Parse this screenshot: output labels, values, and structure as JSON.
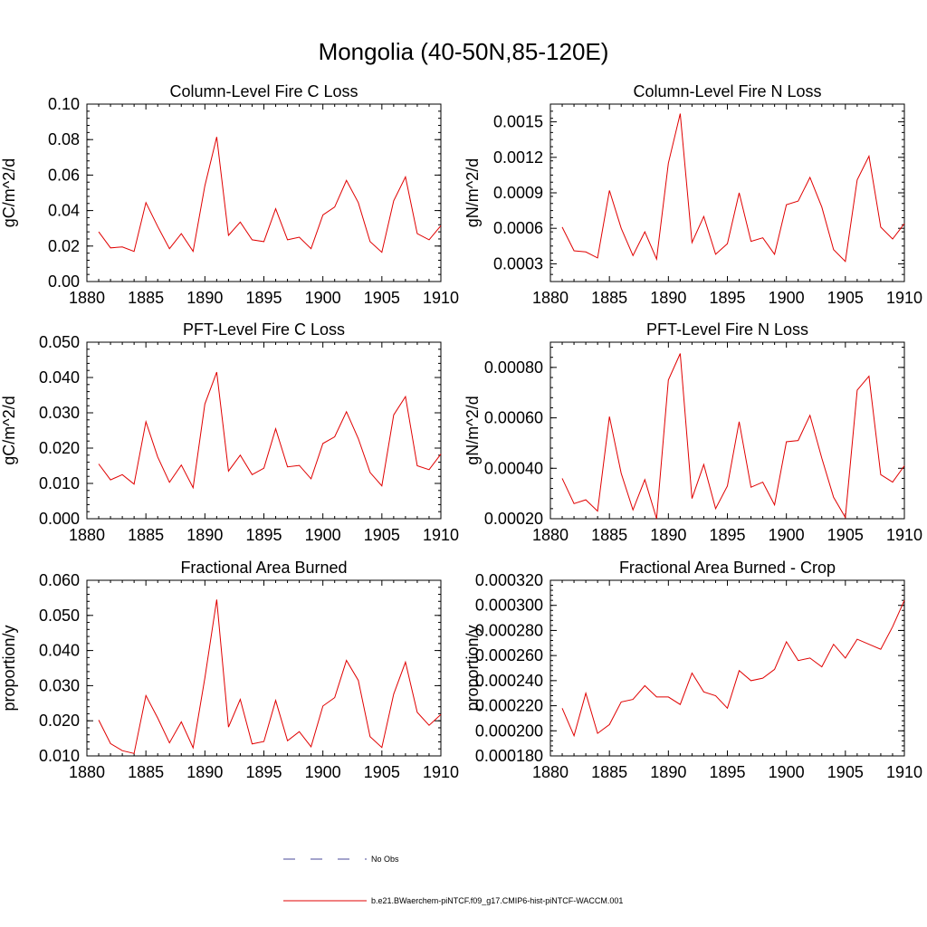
{
  "title": "Mongolia (40-50N,85-120E)",
  "legend": {
    "no_obs_label": "No Obs",
    "model_label": "b.e21.BWaerchem-piNTCF.f09_g17.CMIP6-hist-piNTCF-WACCM.001",
    "no_obs_color": "#4a4a9a",
    "model_color": "#e00000"
  },
  "chart_data": [
    {
      "type": "line",
      "title": "Column-Level Fire C Loss",
      "ylabel": "gC/m^2/d",
      "xlim": [
        1880,
        1910
      ],
      "ylim": [
        0,
        0.1
      ],
      "xticks": [
        "1880",
        "1885",
        "1890",
        "1895",
        "1900",
        "1905",
        "1910"
      ],
      "yticks": [
        "0.00",
        "0.02",
        "0.04",
        "0.06",
        "0.08",
        "0.10"
      ],
      "x": [
        1881,
        1882,
        1883,
        1884,
        1885,
        1886,
        1887,
        1888,
        1889,
        1890,
        1891,
        1892,
        1893,
        1894,
        1895,
        1896,
        1897,
        1898,
        1899,
        1900,
        1901,
        1902,
        1903,
        1904,
        1905,
        1906,
        1907,
        1908,
        1909,
        1910
      ],
      "series": [
        {
          "color": "#e00000",
          "values": [
            0.028,
            0.019,
            0.0195,
            0.017,
            0.0445,
            0.031,
            0.0185,
            0.027,
            0.017,
            0.054,
            0.0815,
            0.026,
            0.0335,
            0.0235,
            0.0225,
            0.041,
            0.0235,
            0.025,
            0.0185,
            0.0375,
            0.042,
            0.057,
            0.0445,
            0.0225,
            0.0165,
            0.0455,
            0.059,
            0.027,
            0.0235,
            0.0315
          ]
        }
      ]
    },
    {
      "type": "line",
      "title": "Column-Level Fire N Loss",
      "ylabel": "gN/m^2/d",
      "xlim": [
        1880,
        1910
      ],
      "ylim": [
        0.00015,
        0.00165
      ],
      "xticks": [
        "1880",
        "1885",
        "1890",
        "1895",
        "1900",
        "1905",
        "1910"
      ],
      "yticks": [
        "0.0003",
        "0.0006",
        "0.0009",
        "0.0012",
        "0.0015"
      ],
      "x": [
        1881,
        1882,
        1883,
        1884,
        1885,
        1886,
        1887,
        1888,
        1889,
        1890,
        1891,
        1892,
        1893,
        1894,
        1895,
        1896,
        1897,
        1898,
        1899,
        1900,
        1901,
        1902,
        1903,
        1904,
        1905,
        1906,
        1907,
        1908,
        1909,
        1910
      ],
      "series": [
        {
          "color": "#e00000",
          "values": [
            0.00061,
            0.00041,
            0.0004,
            0.00035,
            0.00092,
            0.0006,
            0.00037,
            0.00057,
            0.00034,
            0.00115,
            0.00157,
            0.00048,
            0.0007,
            0.00038,
            0.00047,
            0.0009,
            0.00049,
            0.00052,
            0.00038,
            0.0008,
            0.00083,
            0.00103,
            0.00078,
            0.00042,
            0.00032,
            0.00101,
            0.00121,
            0.00061,
            0.00051,
            0.00064
          ]
        }
      ]
    },
    {
      "type": "line",
      "title": "PFT-Level Fire C Loss",
      "ylabel": "gC/m^2/d",
      "xlim": [
        1880,
        1910
      ],
      "ylim": [
        0,
        0.05
      ],
      "xticks": [
        "1880",
        "1885",
        "1890",
        "1895",
        "1900",
        "1905",
        "1910"
      ],
      "yticks": [
        "0.000",
        "0.010",
        "0.020",
        "0.030",
        "0.040",
        "0.050"
      ],
      "x": [
        1881,
        1882,
        1883,
        1884,
        1885,
        1886,
        1887,
        1888,
        1889,
        1890,
        1891,
        1892,
        1893,
        1894,
        1895,
        1896,
        1897,
        1898,
        1899,
        1900,
        1901,
        1902,
        1903,
        1904,
        1905,
        1906,
        1907,
        1908,
        1909,
        1910
      ],
      "series": [
        {
          "color": "#e00000",
          "values": [
            0.0155,
            0.011,
            0.0125,
            0.0098,
            0.0275,
            0.0175,
            0.0103,
            0.0152,
            0.0088,
            0.0325,
            0.0415,
            0.0135,
            0.018,
            0.0125,
            0.0143,
            0.0255,
            0.0147,
            0.0151,
            0.0113,
            0.0213,
            0.0232,
            0.0303,
            0.0227,
            0.0131,
            0.0093,
            0.0294,
            0.0346,
            0.015,
            0.0139,
            0.0183
          ]
        }
      ]
    },
    {
      "type": "line",
      "title": "PFT-Level Fire N Loss",
      "ylabel": "gN/m^2/d",
      "xlim": [
        1880,
        1910
      ],
      "ylim": [
        0.0002,
        0.0009
      ],
      "xticks": [
        "1880",
        "1885",
        "1890",
        "1895",
        "1900",
        "1905",
        "1910"
      ],
      "yticks": [
        "0.00020",
        "0.00040",
        "0.00060",
        "0.00080"
      ],
      "x": [
        1881,
        1882,
        1883,
        1884,
        1885,
        1886,
        1887,
        1888,
        1889,
        1890,
        1891,
        1892,
        1893,
        1894,
        1895,
        1896,
        1897,
        1898,
        1899,
        1900,
        1901,
        1902,
        1903,
        1904,
        1905,
        1906,
        1907,
        1908,
        1909,
        1910
      ],
      "series": [
        {
          "color": "#e00000",
          "values": [
            0.00036,
            0.00026,
            0.000275,
            0.00023,
            0.000605,
            0.00038,
            0.000235,
            0.000355,
            0.0002,
            0.00075,
            0.000855,
            0.00028,
            0.000415,
            0.00024,
            0.00033,
            0.000585,
            0.000325,
            0.000345,
            0.000255,
            0.000505,
            0.00051,
            0.00061,
            0.00044,
            0.000285,
            0.000205,
            0.00071,
            0.000765,
            0.000375,
            0.000345,
            0.00041
          ]
        }
      ]
    },
    {
      "type": "line",
      "title": "Fractional Area Burned",
      "ylabel": "proportion/y",
      "xlim": [
        1880,
        1910
      ],
      "ylim": [
        0.01,
        0.06
      ],
      "xticks": [
        "1880",
        "1885",
        "1890",
        "1895",
        "1900",
        "1905",
        "1910"
      ],
      "yticks": [
        "0.010",
        "0.020",
        "0.030",
        "0.040",
        "0.050",
        "0.060"
      ],
      "x": [
        1881,
        1882,
        1883,
        1884,
        1885,
        1886,
        1887,
        1888,
        1889,
        1890,
        1891,
        1892,
        1893,
        1894,
        1895,
        1896,
        1897,
        1898,
        1899,
        1900,
        1901,
        1902,
        1903,
        1904,
        1905,
        1906,
        1907,
        1908,
        1909,
        1910
      ],
      "series": [
        {
          "color": "#e00000",
          "values": [
            0.0202,
            0.0135,
            0.0115,
            0.0107,
            0.0272,
            0.0208,
            0.0137,
            0.0197,
            0.0123,
            0.0322,
            0.0545,
            0.0182,
            0.0261,
            0.0134,
            0.0141,
            0.0258,
            0.0143,
            0.0169,
            0.0126,
            0.0242,
            0.0266,
            0.0372,
            0.0315,
            0.0155,
            0.0124,
            0.0276,
            0.0367,
            0.0224,
            0.0187,
            0.0218
          ]
        }
      ]
    },
    {
      "type": "line",
      "title": "Fractional Area Burned - Crop",
      "ylabel": "proportion/y",
      "xlim": [
        1880,
        1910
      ],
      "ylim": [
        0.00018,
        0.00032
      ],
      "xticks": [
        "1880",
        "1885",
        "1890",
        "1895",
        "1900",
        "1905",
        "1910"
      ],
      "yticks": [
        "0.000180",
        "0.000200",
        "0.000220",
        "0.000240",
        "0.000260",
        "0.000280",
        "0.000300",
        "0.000320"
      ],
      "x": [
        1881,
        1882,
        1883,
        1884,
        1885,
        1886,
        1887,
        1888,
        1889,
        1890,
        1891,
        1892,
        1893,
        1894,
        1895,
        1896,
        1897,
        1898,
        1899,
        1900,
        1901,
        1902,
        1903,
        1904,
        1905,
        1906,
        1907,
        1908,
        1909,
        1910
      ],
      "series": [
        {
          "color": "#e00000",
          "values": [
            0.000218,
            0.000196,
            0.00023,
            0.000198,
            0.000205,
            0.000223,
            0.000225,
            0.000236,
            0.000227,
            0.000227,
            0.000221,
            0.000246,
            0.000231,
            0.000228,
            0.000218,
            0.000248,
            0.00024,
            0.000242,
            0.000249,
            0.000271,
            0.000256,
            0.000258,
            0.000251,
            0.000269,
            0.000258,
            0.000273,
            0.000269,
            0.000265,
            0.000283,
            0.000304
          ]
        }
      ]
    }
  ]
}
